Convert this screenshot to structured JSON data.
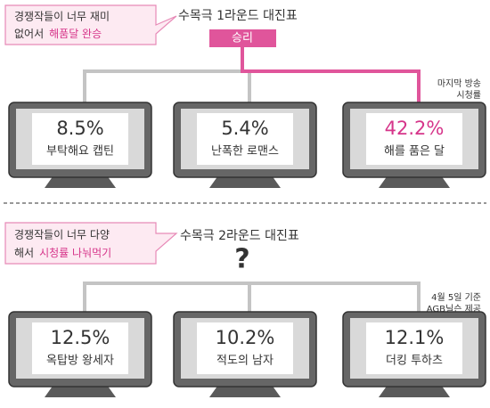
{
  "round1": {
    "title": "수목극 1라운드 대진표",
    "callout": {
      "line1": "경쟁작들이 너무 재미",
      "line2_plain": "없어서",
      "line2_highlight": "해품달 완승"
    },
    "winner_label": "승리",
    "note": [
      "마지막 방송",
      "시청률"
    ],
    "shows": [
      {
        "rating": "8.5%",
        "name": "부탁해요 캡틴"
      },
      {
        "rating": "5.4%",
        "name": "난폭한 로맨스"
      },
      {
        "rating": "42.2%",
        "name": "해를 품은 달"
      }
    ]
  },
  "round2": {
    "title": "수목극 2라운드 대진표",
    "callout": {
      "line1": "경쟁작들이 너무 다양",
      "line2_plain": "해서",
      "line2_highlight": "시청률 나눠먹기"
    },
    "question": "?",
    "note": [
      "4월 5일 기준",
      "AGB닐슨 제공"
    ],
    "shows": [
      {
        "rating": "12.5%",
        "name": "옥탑방 왕세자"
      },
      {
        "rating": "10.2%",
        "name": "적도의 남자"
      },
      {
        "rating": "12.1%",
        "name": "더킹 투하츠"
      }
    ]
  }
}
